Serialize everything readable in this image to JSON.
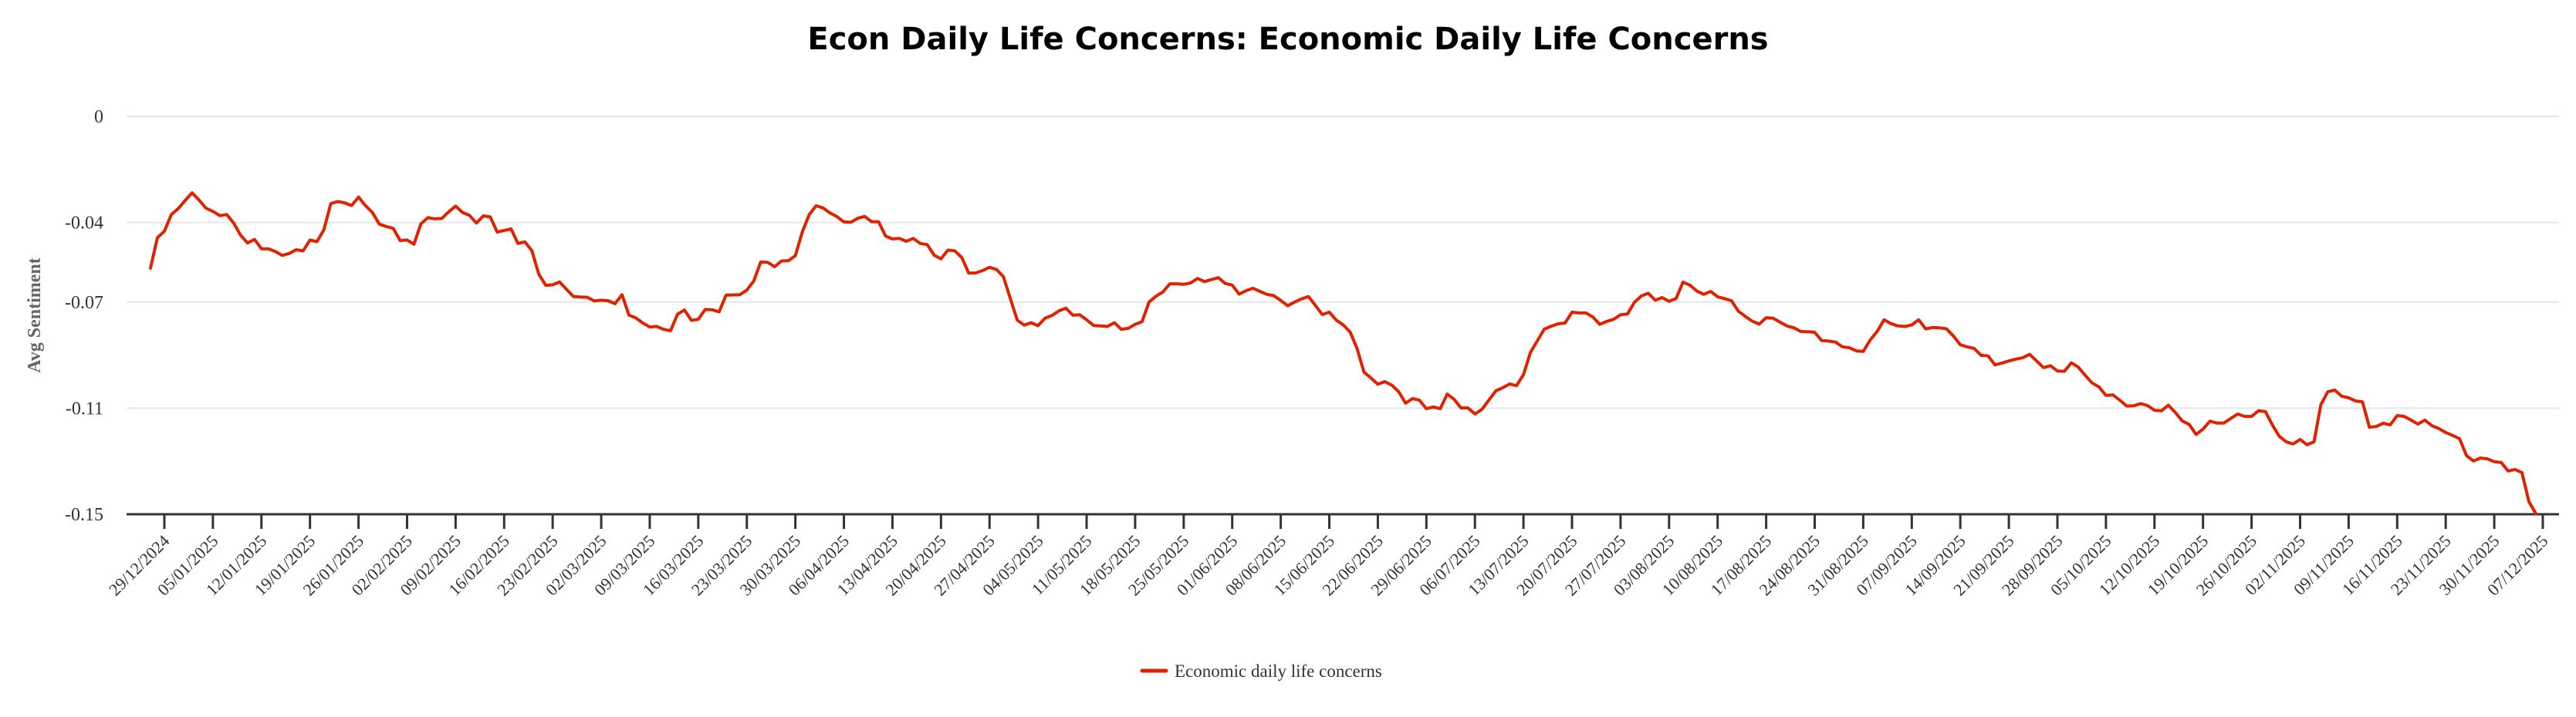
{
  "chart_data": {
    "type": "line",
    "title": "Econ Daily Life Concerns: Economic Daily Life Concerns",
    "xlabel": "",
    "ylabel": "Avg Sentiment",
    "ylim": [
      -0.15,
      0
    ],
    "yticks": [
      0,
      -0.04,
      -0.07,
      -0.11,
      -0.15
    ],
    "ytick_labels": [
      "0",
      "-0.04",
      "-0.07",
      "-0.11",
      "-0.15"
    ],
    "x_start_date": "27/12/2024",
    "x_step_days": 1,
    "xlim_dates": [
      "27/12/2024",
      "09/12/2025"
    ],
    "xtick_labels": [
      "29/12/2024",
      "05/01/2025",
      "12/01/2025",
      "19/01/2025",
      "26/01/2025",
      "02/02/2025",
      "09/02/2025",
      "16/02/2025",
      "23/02/2025",
      "02/03/2025",
      "09/03/2025",
      "16/03/2025",
      "23/03/2025",
      "30/03/2025",
      "06/04/2025",
      "13/04/2025",
      "20/04/2025",
      "27/04/2025",
      "04/05/2025",
      "11/05/2025",
      "18/05/2025",
      "25/05/2025",
      "01/06/2025",
      "08/06/2025",
      "15/06/2025",
      "22/06/2025",
      "29/06/2025",
      "06/07/2025",
      "13/07/2025",
      "20/07/2025",
      "27/07/2025",
      "03/08/2025",
      "10/08/2025",
      "17/08/2025",
      "24/08/2025",
      "31/08/2025",
      "07/09/2025",
      "14/09/2025",
      "21/09/2025",
      "28/09/2025",
      "05/10/2025",
      "12/10/2025",
      "19/10/2025",
      "26/10/2025",
      "02/11/2025",
      "09/11/2025",
      "16/11/2025",
      "23/11/2025",
      "30/11/2025",
      "07/12/2025"
    ],
    "grid": true,
    "legend_position": "bottom-center",
    "series": [
      {
        "name": "Economic daily life concerns",
        "color": "#e12200",
        "values": [
          -0.0572,
          -0.0457,
          -0.0433,
          -0.037,
          -0.0348,
          -0.0317,
          -0.0288,
          -0.0315,
          -0.0346,
          -0.0358,
          -0.0374,
          -0.037,
          -0.0402,
          -0.0448,
          -0.0477,
          -0.0464,
          -0.0499,
          -0.0499,
          -0.0509,
          -0.0524,
          -0.0517,
          -0.0503,
          -0.0507,
          -0.0466,
          -0.0472,
          -0.0428,
          -0.0329,
          -0.0321,
          -0.0326,
          -0.0336,
          -0.0304,
          -0.0336,
          -0.0362,
          -0.0406,
          -0.0415,
          -0.0422,
          -0.0468,
          -0.0466,
          -0.0482,
          -0.0405,
          -0.0382,
          -0.0386,
          -0.0385,
          -0.036,
          -0.0338,
          -0.0362,
          -0.0373,
          -0.0402,
          -0.0375,
          -0.0379,
          -0.0436,
          -0.043,
          -0.0424,
          -0.0479,
          -0.0473,
          -0.0506,
          -0.0595,
          -0.0637,
          -0.0635,
          -0.0624,
          -0.0652,
          -0.0679,
          -0.0681,
          -0.0682,
          -0.0696,
          -0.0693,
          -0.0695,
          -0.0706,
          -0.0672,
          -0.0749,
          -0.076,
          -0.0779,
          -0.0794,
          -0.0792,
          -0.0803,
          -0.0808,
          -0.0746,
          -0.073,
          -0.0769,
          -0.0765,
          -0.0728,
          -0.0729,
          -0.0737,
          -0.0674,
          -0.0673,
          -0.0672,
          -0.0655,
          -0.0621,
          -0.0549,
          -0.055,
          -0.0567,
          -0.0545,
          -0.0544,
          -0.0525,
          -0.0436,
          -0.037,
          -0.0337,
          -0.0345,
          -0.0364,
          -0.0378,
          -0.0398,
          -0.0399,
          -0.0384,
          -0.0377,
          -0.0397,
          -0.0397,
          -0.0451,
          -0.0462,
          -0.046,
          -0.0471,
          -0.046,
          -0.0479,
          -0.0483,
          -0.0523,
          -0.0537,
          -0.0504,
          -0.0507,
          -0.0532,
          -0.0591,
          -0.059,
          -0.0581,
          -0.0569,
          -0.0577,
          -0.0604,
          -0.0687,
          -0.0768,
          -0.0787,
          -0.0778,
          -0.0789,
          -0.0761,
          -0.0751,
          -0.0733,
          -0.0723,
          -0.0749,
          -0.0748,
          -0.0767,
          -0.0788,
          -0.079,
          -0.0792,
          -0.0778,
          -0.0803,
          -0.0799,
          -0.0784,
          -0.0774,
          -0.07,
          -0.0678,
          -0.0662,
          -0.0631,
          -0.0631,
          -0.0633,
          -0.0628,
          -0.0611,
          -0.0623,
          -0.0615,
          -0.0608,
          -0.063,
          -0.0636,
          -0.067,
          -0.0657,
          -0.0648,
          -0.066,
          -0.0671,
          -0.0676,
          -0.0694,
          -0.0714,
          -0.07,
          -0.0688,
          -0.0679,
          -0.0713,
          -0.0747,
          -0.0738,
          -0.0768,
          -0.0786,
          -0.0813,
          -0.0875,
          -0.0964,
          -0.0986,
          -0.101,
          -0.1,
          -0.1013,
          -0.1038,
          -0.1081,
          -0.1064,
          -0.107,
          -0.1102,
          -0.1096,
          -0.1102,
          -0.1047,
          -0.1067,
          -0.1099,
          -0.1099,
          -0.1122,
          -0.1105,
          -0.107,
          -0.1035,
          -0.1023,
          -0.1009,
          -0.1015,
          -0.0974,
          -0.089,
          -0.0846,
          -0.0802,
          -0.0791,
          -0.0782,
          -0.0779,
          -0.0738,
          -0.0741,
          -0.0741,
          -0.0756,
          -0.0784,
          -0.0773,
          -0.0765,
          -0.0748,
          -0.0745,
          -0.0701,
          -0.0677,
          -0.0667,
          -0.0693,
          -0.0683,
          -0.0697,
          -0.0687,
          -0.0625,
          -0.0636,
          -0.0658,
          -0.0671,
          -0.066,
          -0.068,
          -0.0687,
          -0.0695,
          -0.0735,
          -0.0754,
          -0.0772,
          -0.0783,
          -0.0759,
          -0.0761,
          -0.0776,
          -0.079,
          -0.0797,
          -0.0811,
          -0.0812,
          -0.0814,
          -0.0845,
          -0.0847,
          -0.0851,
          -0.0869,
          -0.0872,
          -0.0884,
          -0.0886,
          -0.0843,
          -0.0811,
          -0.0767,
          -0.0781,
          -0.079,
          -0.0792,
          -0.0786,
          -0.0767,
          -0.0801,
          -0.0796,
          -0.0797,
          -0.0801,
          -0.0828,
          -0.0861,
          -0.0869,
          -0.0875,
          -0.0901,
          -0.0903,
          -0.0937,
          -0.093,
          -0.0922,
          -0.0915,
          -0.091,
          -0.0897,
          -0.0922,
          -0.0947,
          -0.094,
          -0.096,
          -0.0961,
          -0.0929,
          -0.0945,
          -0.0976,
          -0.1005,
          -0.102,
          -0.1052,
          -0.105,
          -0.107,
          -0.1092,
          -0.1091,
          -0.1083,
          -0.109,
          -0.1108,
          -0.111,
          -0.1089,
          -0.1116,
          -0.1148,
          -0.1161,
          -0.1199,
          -0.1179,
          -0.1149,
          -0.1156,
          -0.1156,
          -0.1139,
          -0.1122,
          -0.1131,
          -0.1131,
          -0.111,
          -0.1113,
          -0.1163,
          -0.1206,
          -0.1227,
          -0.1235,
          -0.1218,
          -0.1238,
          -0.1227,
          -0.1087,
          -0.1038,
          -0.1032,
          -0.1055,
          -0.1061,
          -0.1073,
          -0.1076,
          -0.1172,
          -0.1169,
          -0.1157,
          -0.1163,
          -0.1128,
          -0.1131,
          -0.1145,
          -0.116,
          -0.1145,
          -0.1166,
          -0.1177,
          -0.1192,
          -0.1203,
          -0.1215,
          -0.1279,
          -0.1299,
          -0.1288,
          -0.1291,
          -0.1302,
          -0.1305,
          -0.1337,
          -0.1331,
          -0.1343,
          -0.1453,
          -0.1497
        ]
      }
    ]
  }
}
